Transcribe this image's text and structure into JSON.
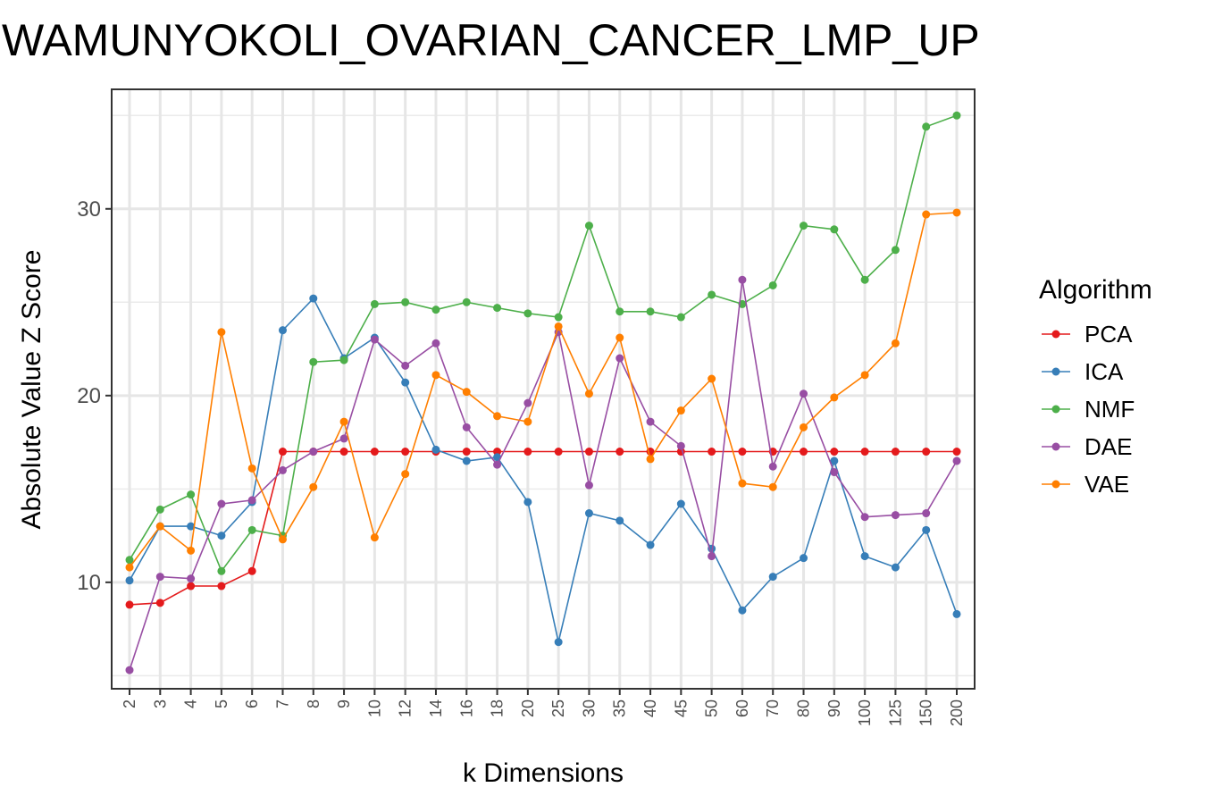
{
  "chart_data": {
    "type": "line",
    "title": "WAMUNYOKOLI_OVARIAN_CANCER_LMP_UP",
    "xlabel": "k Dimensions",
    "ylabel": "Absolute Value Z Score",
    "categories": [
      "2",
      "3",
      "4",
      "5",
      "6",
      "7",
      "8",
      "9",
      "10",
      "12",
      "14",
      "16",
      "18",
      "20",
      "25",
      "30",
      "35",
      "40",
      "45",
      "50",
      "60",
      "70",
      "80",
      "90",
      "100",
      "125",
      "150",
      "200"
    ],
    "y_ticks": [
      "10",
      "20",
      "30"
    ],
    "ylim": [
      4.3,
      36.4
    ],
    "grid": true,
    "legend": {
      "title": "Algorithm",
      "placement": "right"
    },
    "series": [
      {
        "name": "PCA",
        "color": "#e41a1c",
        "values": [
          8.8,
          8.9,
          9.8,
          9.8,
          10.6,
          17.0,
          17.0,
          17.0,
          17.0,
          17.0,
          17.0,
          17.0,
          17.0,
          17.0,
          17.0,
          17.0,
          17.0,
          17.0,
          17.0,
          17.0,
          17.0,
          17.0,
          17.0,
          17.0,
          17.0,
          17.0,
          17.0,
          17.0
        ]
      },
      {
        "name": "ICA",
        "color": "#377eb8",
        "values": [
          10.1,
          13.0,
          13.0,
          12.5,
          14.3,
          23.5,
          25.2,
          22.0,
          23.1,
          20.7,
          17.1,
          16.5,
          16.7,
          14.3,
          6.8,
          13.7,
          13.3,
          12.0,
          14.2,
          11.8,
          8.5,
          10.3,
          11.3,
          16.5,
          11.4,
          10.8,
          12.8,
          8.3
        ]
      },
      {
        "name": "NMF",
        "color": "#4daf4a",
        "values": [
          11.2,
          13.9,
          14.7,
          10.6,
          12.8,
          12.5,
          21.8,
          21.9,
          24.9,
          25.0,
          24.6,
          25.0,
          24.7,
          24.4,
          24.2,
          29.1,
          24.5,
          24.5,
          24.2,
          25.4,
          24.9,
          25.9,
          29.1,
          28.9,
          26.2,
          27.8,
          34.4,
          35.0
        ]
      },
      {
        "name": "DAE",
        "color": "#984ea3",
        "values": [
          5.3,
          10.3,
          10.2,
          14.2,
          14.4,
          16.0,
          17.0,
          17.7,
          23.0,
          21.6,
          22.8,
          18.3,
          16.3,
          19.6,
          23.4,
          15.2,
          22.0,
          18.6,
          17.3,
          11.4,
          26.2,
          16.2,
          20.1,
          15.9,
          13.5,
          13.6,
          13.7,
          16.5
        ]
      },
      {
        "name": "VAE",
        "color": "#ff7f00",
        "values": [
          10.8,
          13.0,
          11.7,
          23.4,
          16.1,
          12.3,
          15.1,
          18.6,
          12.4,
          15.8,
          21.1,
          20.2,
          18.9,
          18.6,
          23.7,
          20.1,
          23.1,
          16.6,
          19.2,
          20.9,
          15.3,
          15.1,
          18.3,
          19.9,
          21.1,
          22.8,
          29.7,
          29.8
        ]
      }
    ]
  }
}
